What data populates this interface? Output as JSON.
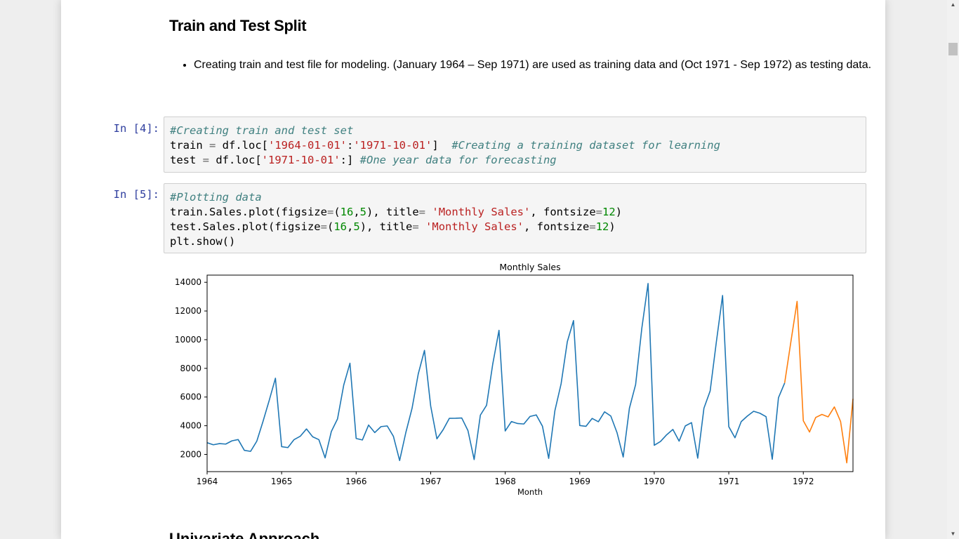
{
  "markdown": {
    "heading": "Train and Test Split",
    "bullets": [
      "Creating train and test file for modeling. (January 1964 – Sep 1971) are used as training data and (Oct 1971 - Sep 1972) as testing data."
    ],
    "next_heading": "Univariate Approach"
  },
  "cells": [
    {
      "prompt": "In [4]:",
      "lines": [
        [
          {
            "t": "#Creating train and test set",
            "c": "cm"
          }
        ],
        [
          {
            "t": "train ",
            "c": ""
          },
          {
            "t": "=",
            "c": "op"
          },
          {
            "t": " df.loc[",
            "c": ""
          },
          {
            "t": "'1964-01-01'",
            "c": "st"
          },
          {
            "t": ":",
            "c": ""
          },
          {
            "t": "'1971-10-01'",
            "c": "st"
          },
          {
            "t": "]  ",
            "c": ""
          },
          {
            "t": "#Creating a training dataset for learning",
            "c": "cm"
          }
        ],
        [
          {
            "t": "test ",
            "c": ""
          },
          {
            "t": "=",
            "c": "op"
          },
          {
            "t": " df.loc[",
            "c": ""
          },
          {
            "t": "'1971-10-01'",
            "c": "st"
          },
          {
            "t": ":] ",
            "c": ""
          },
          {
            "t": "#One year data for forecasting",
            "c": "cm"
          }
        ]
      ]
    },
    {
      "prompt": "In [5]:",
      "lines": [
        [
          {
            "t": "#Plotting data",
            "c": "cm"
          }
        ],
        [
          {
            "t": "train.Sales.plot(figsize",
            "c": ""
          },
          {
            "t": "=",
            "c": "op"
          },
          {
            "t": "(",
            "c": ""
          },
          {
            "t": "16",
            "c": "nu"
          },
          {
            "t": ",",
            "c": ""
          },
          {
            "t": "5",
            "c": "nu"
          },
          {
            "t": "), title",
            "c": ""
          },
          {
            "t": "=",
            "c": "op"
          },
          {
            "t": " ",
            "c": ""
          },
          {
            "t": "'Monthly Sales'",
            "c": "st"
          },
          {
            "t": ", fontsize",
            "c": ""
          },
          {
            "t": "=",
            "c": "op"
          },
          {
            "t": "12",
            "c": "nu"
          },
          {
            "t": ")",
            "c": ""
          }
        ],
        [
          {
            "t": "test.Sales.plot(figsize",
            "c": ""
          },
          {
            "t": "=",
            "c": "op"
          },
          {
            "t": "(",
            "c": ""
          },
          {
            "t": "16",
            "c": "nu"
          },
          {
            "t": ",",
            "c": ""
          },
          {
            "t": "5",
            "c": "nu"
          },
          {
            "t": "), title",
            "c": ""
          },
          {
            "t": "=",
            "c": "op"
          },
          {
            "t": " ",
            "c": ""
          },
          {
            "t": "'Monthly Sales'",
            "c": "st"
          },
          {
            "t": ", fontsize",
            "c": ""
          },
          {
            "t": "=",
            "c": "op"
          },
          {
            "t": "12",
            "c": "nu"
          },
          {
            "t": ")",
            "c": ""
          }
        ],
        [
          {
            "t": "plt.show()",
            "c": ""
          }
        ]
      ]
    }
  ],
  "colors": {
    "train": "#1f77b4",
    "test": "#ff7f0e",
    "prompt": "#303f9f",
    "comment": "#408080",
    "string": "#ba2121",
    "number": "#008800"
  },
  "chart_data": {
    "type": "line",
    "title": "Monthly Sales",
    "xlabel": "Month",
    "ylabel": "",
    "x_ticks": [
      "1964",
      "1965",
      "1966",
      "1967",
      "1968",
      "1969",
      "1970",
      "1971",
      "1972"
    ],
    "y_ticks": [
      "2000",
      "4000",
      "6000",
      "8000",
      "10000",
      "12000",
      "14000"
    ],
    "xlim": [
      "1964-01",
      "1972-09"
    ],
    "ylim": [
      800,
      14500
    ],
    "grid": false,
    "series": [
      {
        "color": "#1f77b4",
        "x_start": "1964-01",
        "values": [
          2815,
          2672,
          2755,
          2721,
          2946,
          3036,
          2282,
          2212,
          2922,
          4301,
          5764,
          7312,
          2541,
          2475,
          3031,
          3266,
          3776,
          3230,
          3028,
          1759,
          3595,
          4474,
          6838,
          8357,
          3113,
          3006,
          4047,
          3523,
          3937,
          3986,
          3260,
          1573,
          3528,
          5211,
          7614,
          9254,
          5375,
          3088,
          3718,
          4514,
          4520,
          4539,
          3663,
          1643,
          4739,
          5428,
          8314,
          10651,
          3633,
          4292,
          4154,
          4121,
          4647,
          4753,
          3965,
          1723,
          5048,
          6922,
          9858,
          11331,
          4016,
          3957,
          4510,
          4276,
          4968,
          4677,
          3523,
          1821,
          5222,
          6872,
          10803,
          13916,
          2639,
          2899,
          3370,
          3740,
          2927,
          3986,
          4217,
          1738,
          5221,
          6424,
          9842,
          13076,
          3934,
          3162,
          4286,
          4676,
          5010,
          4874,
          4633,
          1659,
          5951,
          6981
        ]
      },
      {
        "color": "#ff7f0e",
        "x_start": "1971-10",
        "values": [
          6981,
          9851,
          12670,
          4348,
          3564,
          4577,
          4788,
          4618,
          5312,
          4298,
          1413,
          5877
        ]
      }
    ]
  }
}
